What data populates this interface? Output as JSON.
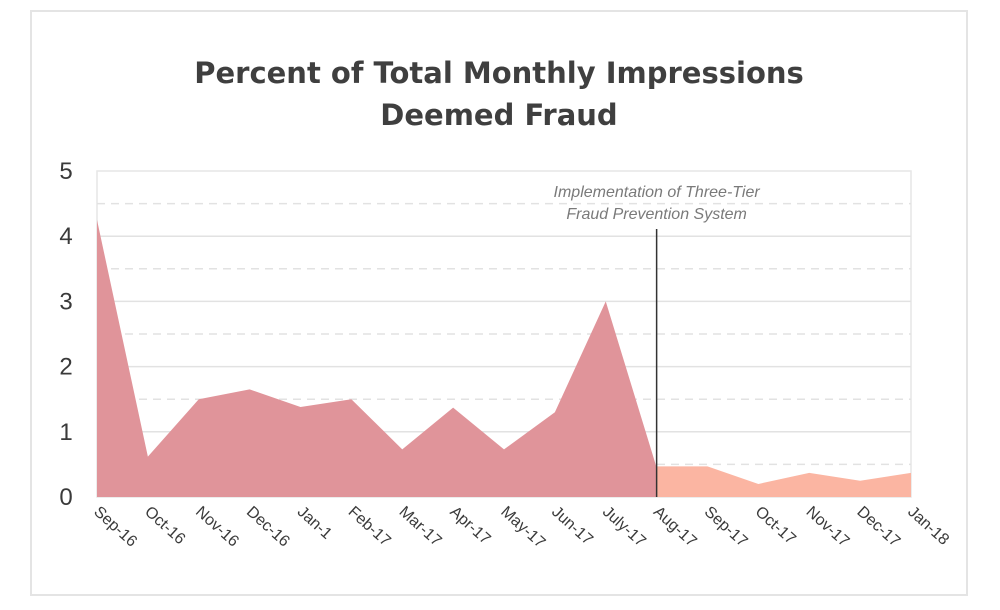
{
  "chart_data": {
    "type": "area",
    "title_lines": [
      "Percent of Total Monthly Impressions",
      "Deemed Fraud"
    ],
    "xlabel": "",
    "ylabel": "",
    "ylim": [
      0,
      5
    ],
    "yticks": [
      "0",
      "1",
      "2",
      "3",
      "4",
      "5"
    ],
    "categories": [
      "Sep-16",
      "Oct-16",
      "Nov-16",
      "Dec-16",
      "Jan-1",
      "Feb-17",
      "Mar-17",
      "Apr-17",
      "May-17",
      "Jun-17",
      "July-17",
      "Aug-17",
      "Sep-17",
      "Oct-17",
      "Nov-17",
      "Dec-17",
      "Jan-18"
    ],
    "series": [
      {
        "values": [
          4.25,
          0.62,
          1.5,
          1.65,
          1.38,
          1.5,
          0.73,
          1.37,
          0.73,
          1.3,
          3.0,
          0.45,
          null,
          null,
          null,
          null,
          null
        ],
        "color": "#e0949a"
      },
      {
        "values": [
          null,
          null,
          null,
          null,
          null,
          null,
          null,
          null,
          null,
          null,
          null,
          0.47,
          0.47,
          0.2,
          0.37,
          0.25,
          0.37
        ],
        "color": "#fbb5a2"
      }
    ],
    "annotation": {
      "category": "Aug-17",
      "lines": [
        "Implementation of Three-Tier",
        "Fraud Prevention System"
      ]
    },
    "grid": true,
    "legend": "none"
  }
}
